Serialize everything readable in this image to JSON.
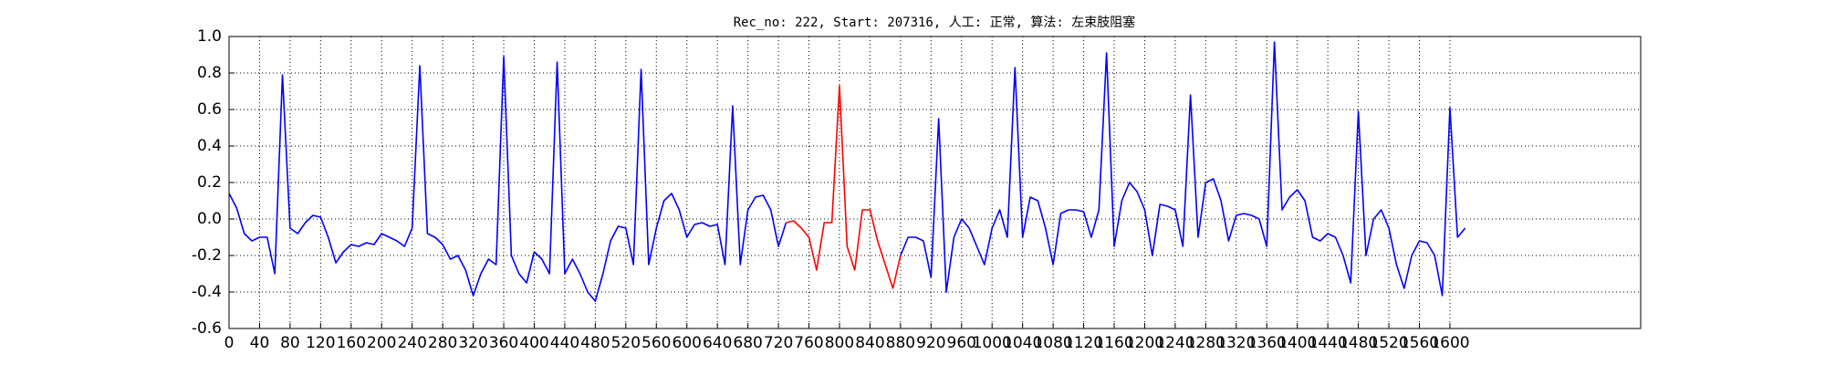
{
  "chart_data": {
    "type": "line",
    "title": "Rec_no: 222, Start: 207316, 人工: 正常, 算法: 左束肢阻塞",
    "x": [
      0,
      10,
      20,
      30,
      40,
      50,
      60,
      70,
      80,
      90,
      100,
      110,
      120,
      130,
      140,
      150,
      160,
      170,
      180,
      190,
      200,
      210,
      220,
      230,
      240,
      250,
      260,
      270,
      280,
      290,
      300,
      310,
      320,
      330,
      340,
      350,
      360,
      370,
      380,
      390,
      400,
      410,
      420,
      430,
      440,
      450,
      460,
      470,
      480,
      490,
      500,
      510,
      520,
      530,
      540,
      550,
      560,
      570,
      580,
      590,
      600,
      610,
      620,
      630,
      640,
      650,
      660,
      670,
      680,
      690,
      700,
      710,
      720,
      730,
      740,
      750,
      760,
      770,
      780,
      790,
      800,
      810,
      820,
      830,
      840,
      850,
      860,
      870,
      880,
      890,
      900,
      910,
      920,
      930,
      940,
      950,
      960,
      970,
      980,
      990,
      1000,
      1010,
      1020,
      1030,
      1040,
      1050,
      1060,
      1070,
      1080,
      1090,
      1100,
      1110,
      1120,
      1130,
      1140,
      1150,
      1160,
      1170,
      1180,
      1190,
      1200,
      1210,
      1220,
      1230,
      1240,
      1250,
      1260,
      1270,
      1280,
      1290,
      1300,
      1310,
      1320,
      1330,
      1340,
      1350,
      1360,
      1370,
      1380,
      1390,
      1400,
      1410,
      1420,
      1430,
      1440,
      1450,
      1460,
      1470,
      1480,
      1490,
      1500,
      1510,
      1520,
      1530,
      1540,
      1550,
      1560,
      1570,
      1580,
      1590,
      1600,
      1610,
      1620
    ],
    "series": [
      {
        "color": "#0000ff",
        "values": [
          0.14,
          0.06,
          -0.08,
          -0.12,
          -0.1,
          -0.1,
          -0.3,
          0.79,
          -0.05,
          -0.08,
          -0.02,
          0.02,
          0.01,
          -0.1,
          -0.24,
          -0.18,
          -0.14,
          -0.15,
          -0.13,
          -0.14,
          -0.08,
          -0.1,
          -0.12,
          -0.15,
          -0.05,
          0.84,
          -0.08,
          -0.1,
          -0.14,
          -0.22,
          -0.2,
          -0.28,
          -0.42,
          -0.3,
          -0.22,
          -0.25,
          0.89,
          -0.2,
          -0.3,
          -0.35,
          -0.18,
          -0.22,
          -0.3,
          0.86,
          -0.3,
          -0.22,
          -0.3,
          -0.4,
          -0.45,
          -0.3,
          -0.12,
          -0.04,
          -0.05,
          -0.25,
          0.82,
          -0.25,
          -0.05,
          0.1,
          0.14,
          0.05,
          -0.1,
          -0.03,
          -0.02,
          -0.04,
          -0.03,
          -0.25,
          0.62,
          -0.25,
          0.05,
          0.12,
          0.13,
          0.05,
          -0.15,
          -0.02,
          null,
          null,
          null,
          null,
          null,
          null,
          null,
          null,
          null,
          null,
          null,
          null,
          null,
          null,
          -0.2,
          -0.1,
          -0.1,
          -0.12,
          -0.32,
          0.55,
          -0.4,
          -0.1,
          0.0,
          -0.05,
          -0.15,
          -0.25,
          -0.05,
          0.05,
          -0.1,
          0.83,
          -0.1,
          0.12,
          0.1,
          -0.05,
          -0.25,
          0.03,
          0.05,
          0.05,
          0.04,
          -0.1,
          0.05,
          0.91,
          -0.15,
          0.1,
          0.2,
          0.15,
          0.05,
          -0.2,
          0.08,
          0.07,
          0.05,
          -0.15,
          0.68,
          -0.1,
          0.2,
          0.22,
          0.1,
          -0.12,
          0.02,
          0.03,
          0.02,
          0.0,
          -0.15,
          0.97,
          0.05,
          0.12,
          0.16,
          0.1,
          -0.1,
          -0.12,
          -0.08,
          -0.1,
          -0.2,
          -0.35,
          0.59,
          -0.2,
          0.0,
          0.05,
          -0.05,
          -0.25,
          -0.38,
          -0.2,
          -0.12,
          -0.13,
          -0.2,
          -0.42,
          0.61,
          -0.1,
          -0.05
        ]
      },
      {
        "color": "#ff0000",
        "values": [
          null,
          null,
          null,
          null,
          null,
          null,
          null,
          null,
          null,
          null,
          null,
          null,
          null,
          null,
          null,
          null,
          null,
          null,
          null,
          null,
          null,
          null,
          null,
          null,
          null,
          null,
          null,
          null,
          null,
          null,
          null,
          null,
          null,
          null,
          null,
          null,
          null,
          null,
          null,
          null,
          null,
          null,
          null,
          null,
          null,
          null,
          null,
          null,
          null,
          null,
          null,
          null,
          null,
          null,
          null,
          null,
          null,
          null,
          null,
          null,
          null,
          null,
          null,
          null,
          null,
          null,
          null,
          null,
          null,
          null,
          null,
          null,
          null,
          -0.02,
          -0.01,
          -0.05,
          -0.1,
          -0.28,
          -0.02,
          -0.02,
          0.73,
          -0.15,
          -0.28,
          0.05,
          0.05,
          -0.12,
          -0.25,
          -0.38,
          -0.2,
          null,
          null,
          null,
          null,
          null,
          null,
          null,
          null,
          null,
          null,
          null,
          null,
          null,
          null,
          null,
          null,
          null,
          null,
          null,
          null,
          null,
          null,
          null,
          null,
          null,
          null,
          null,
          null,
          null,
          null,
          null,
          null,
          null,
          null,
          null,
          null,
          null,
          null,
          null,
          null,
          null,
          null,
          null,
          null,
          null,
          null,
          null,
          null,
          null,
          null,
          null,
          null,
          null,
          null,
          null,
          null,
          null,
          null,
          null,
          null,
          null,
          null,
          null,
          null,
          null,
          null,
          null,
          null,
          null,
          null,
          null,
          null,
          null,
          null
        ]
      }
    ],
    "xlim": [
      0,
      1850
    ],
    "xticks": [
      0,
      40,
      80,
      120,
      160,
      200,
      240,
      280,
      320,
      360,
      400,
      440,
      480,
      520,
      560,
      600,
      640,
      680,
      720,
      760,
      800,
      840,
      880,
      920,
      960,
      1000,
      1040,
      1080,
      1120,
      1160,
      1200,
      1240,
      1280,
      1320,
      1360,
      1400,
      1440,
      1480,
      1520,
      1560,
      1600
    ],
    "ylim": [
      -0.6,
      1.0
    ],
    "yticks": [
      -0.6,
      -0.4,
      -0.2,
      {
        "value": 0,
        "label": "0.0"
      },
      0.2,
      0.4,
      0.6,
      0.8,
      {
        "value": 1,
        "label": "1.0"
      }
    ],
    "grid": true
  }
}
